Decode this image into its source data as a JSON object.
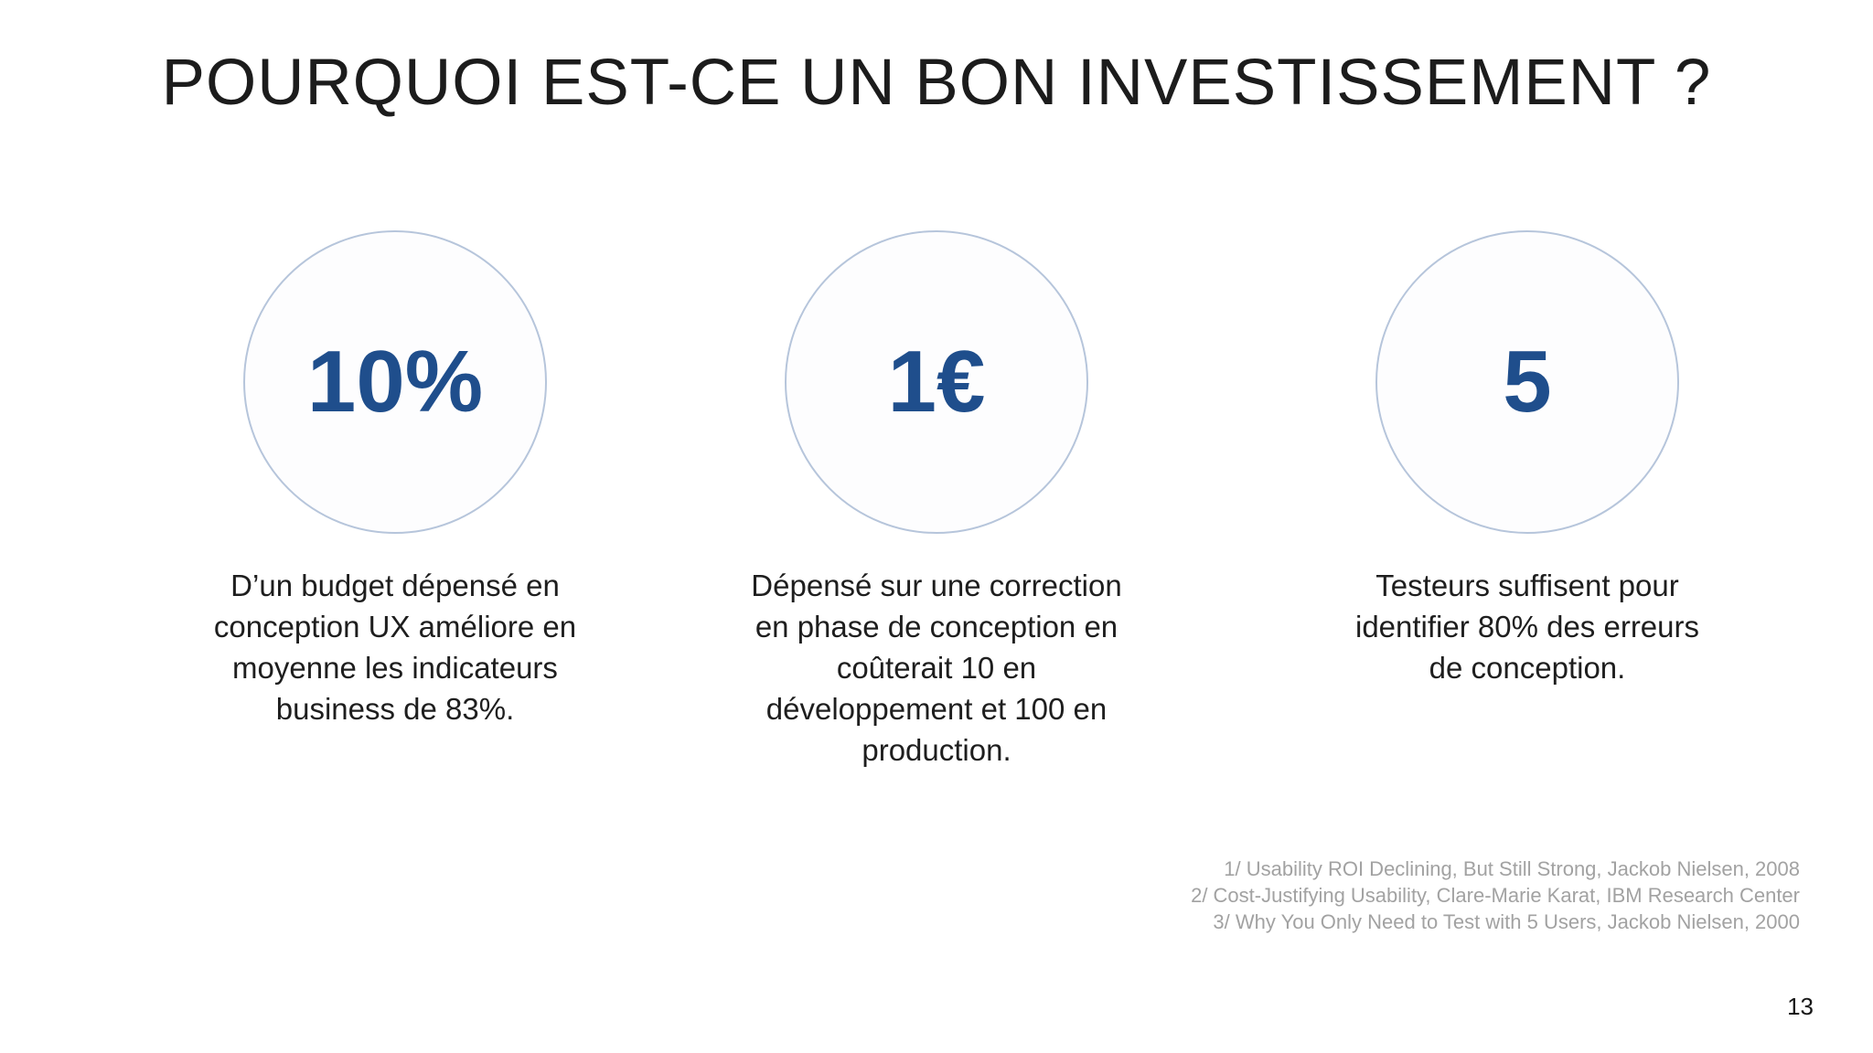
{
  "slide": {
    "title": "POURQUOI EST-CE UN BON INVESTISSEMENT ?",
    "stats": [
      {
        "value": "10%",
        "description": "D’un budget dépensé en\nconception UX améliore en\nmoyenne les indicateurs\nbusiness de 83%."
      },
      {
        "value": "1€",
        "description": "Dépensé sur une correction\nen phase de conception en\ncoûterait 10 en\ndéveloppement et 100 en\nproduction."
      },
      {
        "value": "5",
        "description": "Testeurs suffisent pour\nidentifier 80% des erreurs\nde conception."
      }
    ],
    "footnotes": [
      "1/ Usability ROI Declining, But Still Strong, Jackob Nielsen, 2008",
      "2/ Cost-Justifying Usability, Clare-Marie Karat, IBM Research Center",
      "3/ Why You Only Need to Test with 5 Users, Jackob Nielsen, 2000"
    ],
    "page_number": "13",
    "colors": {
      "accent_blue": "#1f4e8c",
      "circle_border": "#b6c5db",
      "footnote_gray": "#a2a2a2"
    }
  }
}
